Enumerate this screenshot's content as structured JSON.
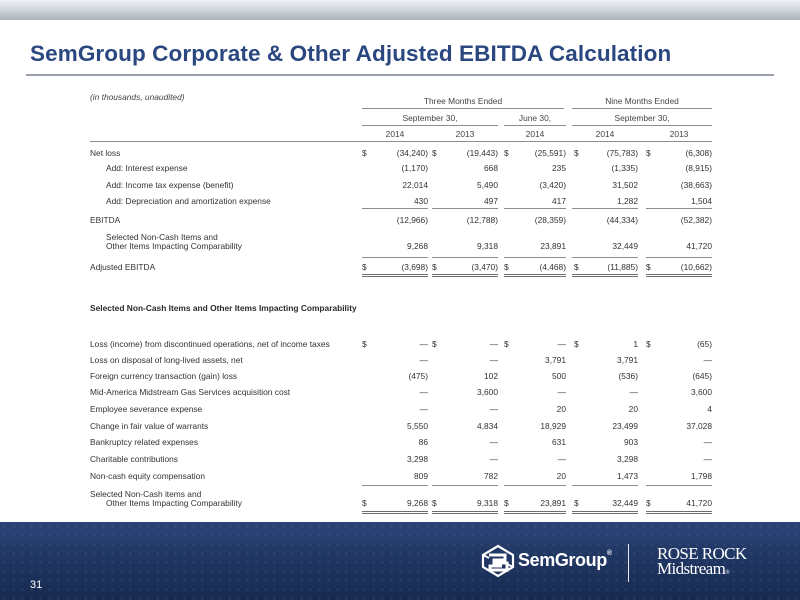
{
  "slide": {
    "title": "SemGroup Corporate & Other Adjusted EBITDA Calculation",
    "page_number": "31"
  },
  "table": {
    "note": "(in thousands, unaudited)",
    "header": {
      "group1": "Three Months Ended",
      "group2": "Nine Months Ended",
      "sep30_a": "September 30,",
      "jun30": "June 30,",
      "sep30_b": "September 30,",
      "years": [
        "2014",
        "2013",
        "2014",
        "2014",
        "2013"
      ]
    },
    "ebitda_rows": [
      {
        "label": "Net loss",
        "dollar": true,
        "values": [
          "(34,240)",
          "(19,443)",
          "(25,591)",
          "(75,783)",
          "(6,308)"
        ]
      },
      {
        "label": "Add: Interest expense",
        "dollar": false,
        "values": [
          "(1,170)",
          "668",
          "235",
          "(1,335)",
          "(8,915)"
        ]
      },
      {
        "label": "Add: Income tax expense (benefit)",
        "dollar": false,
        "values": [
          "22,014",
          "5,490",
          "(3,420)",
          "31,502",
          "(38,663)"
        ]
      },
      {
        "label": "Add: Depreciation and amortization expense",
        "dollar": false,
        "values": [
          "430",
          "497",
          "417",
          "1,282",
          "1,504"
        ]
      },
      {
        "label": "EBITDA",
        "dollar": false,
        "values": [
          "(12,966)",
          "(12,788)",
          "(28,359)",
          "(44,334)",
          "(52,382)"
        ]
      },
      {
        "label": "Selected Non-Cash Items and",
        "label2": "Other Items Impacting Comparability",
        "dollar": false,
        "values": [
          "9,268",
          "9,318",
          "23,891",
          "32,449",
          "41,720"
        ]
      },
      {
        "label": "Adjusted EBITDA",
        "dollar": true,
        "values": [
          "(3,698)",
          "(3,470)",
          "(4,468)",
          "(11,885)",
          "(10,662)"
        ]
      }
    ],
    "section2_title": "Selected Non-Cash Items and Other Items Impacting Comparability",
    "items_rows": [
      {
        "label": "Loss (income) from discontinued operations, net of income taxes",
        "dollar": true,
        "values": [
          "—",
          "—",
          "—",
          "1",
          "(65)"
        ]
      },
      {
        "label": "Loss on disposal of long-lived assets, net",
        "dollar": false,
        "values": [
          "—",
          "—",
          "3,791",
          "3,791",
          "—"
        ]
      },
      {
        "label": "Foreign currency transaction (gain) loss",
        "dollar": false,
        "values": [
          "(475)",
          "102",
          "500",
          "(536)",
          "(645)"
        ]
      },
      {
        "label": "Mid-America Midstream Gas Services acquisition cost",
        "dollar": false,
        "values": [
          "—",
          "3,600",
          "—",
          "—",
          "3,600"
        ]
      },
      {
        "label": "Employee severance expense",
        "dollar": false,
        "values": [
          "—",
          "—",
          "20",
          "20",
          "4"
        ]
      },
      {
        "label": "Change in fair value of warrants",
        "dollar": false,
        "values": [
          "5,550",
          "4,834",
          "18,929",
          "23,499",
          "37,028"
        ]
      },
      {
        "label": "Bankruptcy related expenses",
        "dollar": false,
        "values": [
          "86",
          "—",
          "631",
          "903",
          "—"
        ]
      },
      {
        "label": "Charitable contributions",
        "dollar": false,
        "values": [
          "3,298",
          "—",
          "—",
          "3,298",
          "—"
        ]
      },
      {
        "label": "Non-cash equity compensation",
        "dollar": false,
        "values": [
          "809",
          "782",
          "20",
          "1,473",
          "1,798"
        ]
      },
      {
        "label": "Selected Non-Cash items and",
        "label2": "Other Items Impacting Comparability",
        "dollar": true,
        "values": [
          "9,268",
          "9,318",
          "23,891",
          "32,449",
          "41,720"
        ]
      }
    ],
    "dollar_sign": "$"
  },
  "logos": {
    "semgroup": "SemGroup",
    "semgroup_mark": "®",
    "rose_rock_line1": "ROSE ROCK",
    "rose_rock_line2": "Midstream",
    "rose_rock_mark": "®"
  },
  "colors": {
    "title": "#2a4780",
    "footer": "#213865"
  }
}
